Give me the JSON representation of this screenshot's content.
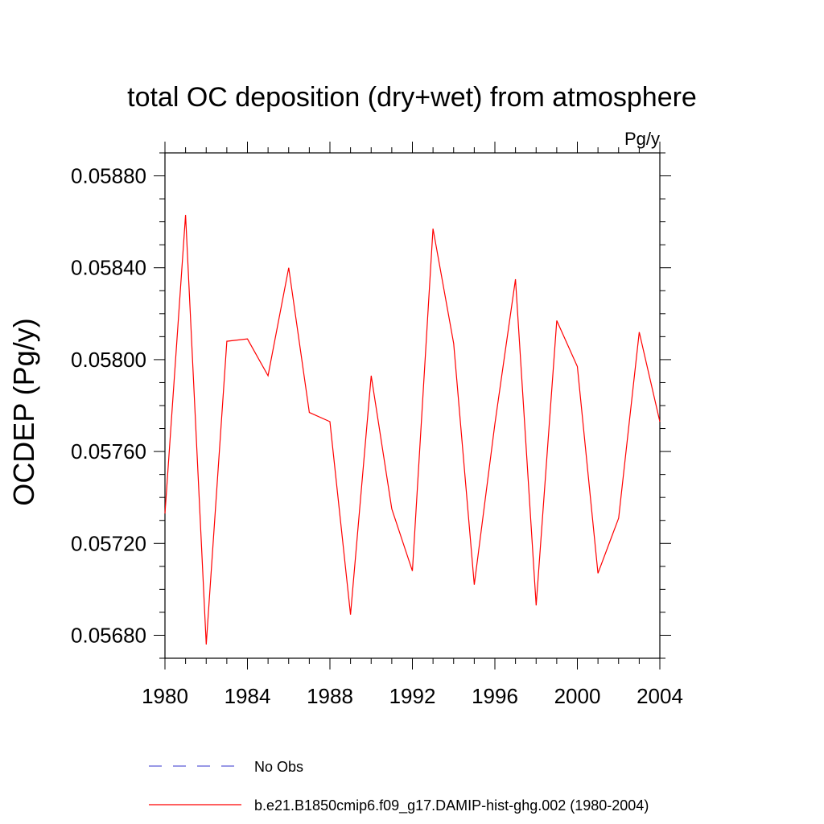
{
  "chart_data": {
    "type": "line",
    "title": "total OC deposition (dry+wet) from atmosphere",
    "units_label": "Pg/y",
    "xlabel": "",
    "ylabel": "OCDEP  (Pg/y)",
    "xlim": [
      1980,
      2004
    ],
    "ylim": [
      0.0567,
      0.0589
    ],
    "x_ticks": [
      1980,
      1984,
      1988,
      1992,
      1996,
      2000,
      2004
    ],
    "x_tick_labels": [
      "1980",
      "1984",
      "1988",
      "1992",
      "1996",
      "2000",
      "2004"
    ],
    "y_ticks": [
      0.0568,
      0.0572,
      0.0576,
      0.058,
      0.0584,
      0.0588
    ],
    "y_tick_labels": [
      "0.05680",
      "0.05720",
      "0.05760",
      "0.05800",
      "0.05840",
      "0.05880"
    ],
    "grid": false,
    "legend_position": "bottom",
    "series": [
      {
        "name": "No Obs",
        "style": "dashed",
        "color": "#5b5bd6",
        "x": [],
        "values": []
      },
      {
        "name": "b.e21.B1850cmip6.f09_g17.DAMIP-hist-ghg.002 (1980-2004)",
        "style": "solid",
        "color": "#ff0000",
        "x": [
          1980,
          1981,
          1982,
          1983,
          1984,
          1985,
          1986,
          1987,
          1988,
          1989,
          1990,
          1991,
          1992,
          1993,
          1994,
          1995,
          1996,
          1997,
          1998,
          1999,
          2000,
          2001,
          2002,
          2003,
          2004
        ],
        "values": [
          0.05733,
          0.05863,
          0.05676,
          0.05808,
          0.05809,
          0.05793,
          0.0584,
          0.05777,
          0.05773,
          0.05689,
          0.05793,
          0.05735,
          0.05708,
          0.05857,
          0.05807,
          0.05702,
          0.05772,
          0.05835,
          0.05693,
          0.05817,
          0.05797,
          0.05707,
          0.05731,
          0.05812,
          0.05773
        ]
      }
    ]
  }
}
